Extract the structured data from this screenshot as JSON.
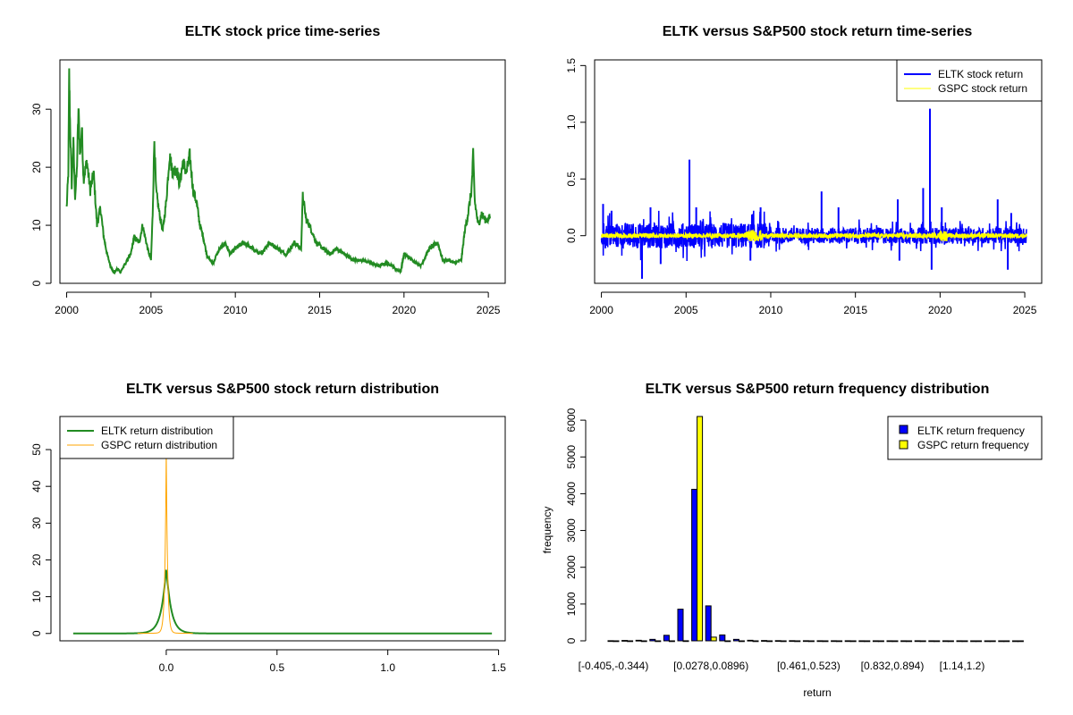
{
  "colors": {
    "price": "#228B22",
    "eltk_return": "#0000FF",
    "gspc_return": "#FFFF00",
    "eltk_density": "#228B22",
    "gspc_density": "#FFA500",
    "eltk_freq": "#0000FF",
    "gspc_freq": "#FFFF00"
  },
  "chart_data": [
    {
      "type": "line",
      "title": "ELTK stock price time-series",
      "xlabel": "",
      "ylabel": "",
      "xlim": [
        1999.6,
        2026.0
      ],
      "ylim": [
        0,
        38.5
      ],
      "xticks": [
        2000,
        2005,
        2010,
        2015,
        2020,
        2025
      ],
      "yticks": [
        0,
        10,
        20,
        30
      ],
      "series": [
        {
          "name": "ELTK price",
          "x": [
            2000.0,
            2000.1,
            2000.15,
            2000.2,
            2000.3,
            2000.4,
            2000.5,
            2000.6,
            2000.7,
            2000.8,
            2000.9,
            2001.0,
            2001.2,
            2001.4,
            2001.6,
            2001.8,
            2002.0,
            2002.2,
            2002.4,
            2002.6,
            2002.8,
            2003.0,
            2003.2,
            2003.5,
            2003.8,
            2004.0,
            2004.3,
            2004.5,
            2004.8,
            2005.0,
            2005.1,
            2005.2,
            2005.3,
            2005.5,
            2005.7,
            2005.9,
            2006.1,
            2006.3,
            2006.5,
            2006.7,
            2006.9,
            2007.1,
            2007.3,
            2007.5,
            2007.7,
            2007.9,
            2008.1,
            2008.3,
            2008.5,
            2008.7,
            2008.9,
            2009.1,
            2009.4,
            2009.7,
            2010.0,
            2010.5,
            2011.0,
            2011.5,
            2012.0,
            2012.5,
            2013.0,
            2013.5,
            2013.9,
            2014.0,
            2014.2,
            2014.4,
            2014.8,
            2015.2,
            2015.6,
            2016.0,
            2016.5,
            2017.0,
            2017.5,
            2018.0,
            2018.5,
            2019.0,
            2019.3,
            2019.5,
            2019.8,
            2020.0,
            2020.5,
            2021.0,
            2021.5,
            2022.0,
            2022.3,
            2022.6,
            2023.0,
            2023.4,
            2023.6,
            2023.8,
            2024.0,
            2024.1,
            2024.2,
            2024.4,
            2024.6,
            2024.8,
            2025.0,
            2025.1
          ],
          "y": [
            13,
            19,
            36,
            28,
            17,
            24,
            15,
            19,
            30,
            22,
            27,
            18,
            21,
            16,
            19,
            10,
            13,
            8,
            5,
            3,
            1.8,
            2.5,
            2.0,
            3.5,
            5,
            8,
            7,
            10,
            6,
            4,
            12,
            25,
            16,
            12,
            9,
            14,
            22,
            19,
            20,
            17,
            21,
            19,
            22,
            16,
            14,
            10,
            8,
            5,
            4,
            3.5,
            5,
            6,
            7,
            5,
            6,
            7,
            6,
            5,
            7,
            6,
            5,
            7,
            6,
            15,
            11,
            10,
            7,
            6,
            5,
            6,
            5,
            4,
            4,
            3.5,
            3,
            3.5,
            3,
            2.5,
            2,
            5,
            4,
            3,
            6,
            7,
            4,
            4,
            3.5,
            4,
            9,
            12,
            16,
            22,
            14,
            10,
            12,
            11,
            11,
            11.5
          ]
        }
      ]
    },
    {
      "type": "line",
      "title": "ELTK versus S&P500 stock return time-series",
      "xlabel": "",
      "ylabel": "",
      "xlim": [
        1999.6,
        2026.0
      ],
      "ylim": [
        -0.42,
        1.55
      ],
      "xticks": [
        2000,
        2005,
        2010,
        2015,
        2020,
        2025
      ],
      "yticks": [
        0.0,
        0.5,
        1.0,
        1.5
      ],
      "legend": {
        "position": "top-right",
        "entries": [
          "ELTK stock return",
          "GSPC stock return"
        ]
      },
      "series": [
        {
          "name": "ELTK stock return",
          "amplitude": 0.08,
          "spikes": [
            {
              "x": 2000.1,
              "y": 0.28
            },
            {
              "x": 2000.6,
              "y": 0.22
            },
            {
              "x": 2002.4,
              "y": -0.38
            },
            {
              "x": 2002.9,
              "y": 0.25
            },
            {
              "x": 2003.5,
              "y": -0.25
            },
            {
              "x": 2005.2,
              "y": 0.67
            },
            {
              "x": 2005.6,
              "y": 0.25
            },
            {
              "x": 2008.8,
              "y": -0.22
            },
            {
              "x": 2009.4,
              "y": 0.25
            },
            {
              "x": 2013.0,
              "y": 0.39
            },
            {
              "x": 2014.0,
              "y": 0.25
            },
            {
              "x": 2017.5,
              "y": 0.32
            },
            {
              "x": 2017.6,
              "y": -0.22
            },
            {
              "x": 2019.0,
              "y": 0.42
            },
            {
              "x": 2019.4,
              "y": 1.12
            },
            {
              "x": 2019.5,
              "y": -0.3
            },
            {
              "x": 2020.1,
              "y": 0.25
            },
            {
              "x": 2023.4,
              "y": 0.32
            },
            {
              "x": 2024.0,
              "y": -0.3
            },
            {
              "x": 2024.2,
              "y": 0.2
            }
          ]
        },
        {
          "name": "GSPC stock return",
          "amplitude": 0.02
        }
      ]
    },
    {
      "type": "line",
      "title": "ELTK versus S&P500 stock return distribution",
      "xlabel": "",
      "ylabel": "",
      "xlim": [
        -0.48,
        1.53
      ],
      "ylim": [
        -2,
        59
      ],
      "xticks": [
        0.0,
        0.5,
        1.0,
        1.5
      ],
      "yticks": [
        0,
        10,
        20,
        30,
        40,
        50
      ],
      "legend": {
        "position": "top-left",
        "entries": [
          "ELTK return distribution",
          "GSPC return distribution"
        ]
      },
      "series": [
        {
          "name": "ELTK return distribution",
          "center": 0.0,
          "peak": 18,
          "scale": 0.022,
          "range": [
            -0.42,
            1.47
          ]
        },
        {
          "name": "GSPC return distribution",
          "center": 0.0,
          "peak": 50,
          "scale": 0.006,
          "range": [
            -0.13,
            0.12
          ]
        }
      ]
    },
    {
      "type": "bar",
      "title": "ELTK versus S&P500 return frequency distribution",
      "xlabel": "return",
      "ylabel": "frequency",
      "ylim": [
        0,
        6100
      ],
      "yticks": [
        0,
        1000,
        2000,
        3000,
        4000,
        5000,
        6000
      ],
      "tick_labels": [
        "[-0.405,-0.344)",
        "[0.0278,0.0896)",
        "[0.461,0.523)",
        "[0.832,0.894)",
        "[1.14,1.2)"
      ],
      "tick_label_bins": [
        0,
        7,
        14,
        20,
        25
      ],
      "legend": {
        "position": "top-right",
        "entries": [
          "ELTK return frequency",
          "GSPC return frequency"
        ]
      },
      "series": [
        {
          "name": "ELTK return frequency",
          "values": [
            3,
            10,
            15,
            40,
            150,
            860,
            4120,
            950,
            160,
            40,
            15,
            8,
            5,
            4,
            3,
            2,
            2,
            2,
            1,
            1,
            1,
            1,
            2,
            1,
            1,
            1,
            0,
            0,
            0,
            0
          ]
        },
        {
          "name": "GSPC return frequency",
          "values": [
            0,
            0,
            0,
            0,
            0,
            2,
            6300,
            100,
            0,
            0,
            0,
            0,
            0,
            0,
            0,
            0,
            0,
            0,
            0,
            0,
            0,
            0,
            0,
            0,
            0,
            0,
            0,
            0,
            0,
            0
          ]
        }
      ]
    }
  ]
}
